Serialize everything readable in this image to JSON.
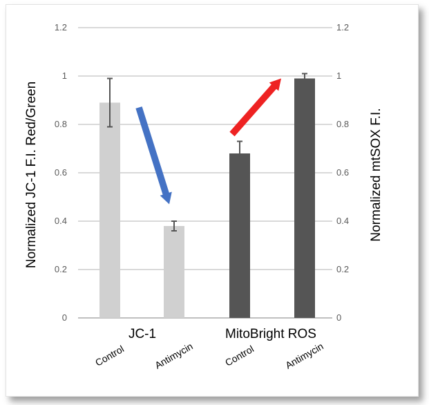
{
  "chart_data": {
    "type": "bar",
    "ylabel": "Normalized JC-1 F.I. Red/Green",
    "y2label": "Normalized mtSOX F.I.",
    "ylim": [
      0,
      1.2
    ],
    "y_ticks": [
      "0",
      "0.2",
      "0.4",
      "0.6",
      "0.8",
      "1",
      "1.2"
    ],
    "grid": true,
    "groups": [
      {
        "label": "JC-1",
        "categories": [
          "Control",
          "Antimycin"
        ]
      },
      {
        "label": "MitoBright ROS",
        "categories": [
          "Control",
          "Antimycin"
        ]
      }
    ],
    "bars": [
      {
        "group": 0,
        "category": "Control",
        "value": 0.89,
        "error": 0.1,
        "color": "#d0d0d0"
      },
      {
        "group": 0,
        "category": "Antimycin",
        "value": 0.38,
        "error": 0.02,
        "color": "#d0d0d0"
      },
      {
        "group": 1,
        "category": "Control",
        "value": 0.68,
        "error": 0.05,
        "color": "#555555"
      },
      {
        "group": 1,
        "category": "Antimycin",
        "value": 0.99,
        "error": 0.02,
        "color": "#555555"
      }
    ],
    "annotations": [
      {
        "type": "arrow",
        "direction": "down",
        "color": "#4472c4",
        "from_value": 0.87,
        "to_value": 0.47,
        "between": [
          0,
          1
        ]
      },
      {
        "type": "arrow",
        "direction": "up",
        "color": "#ee2222",
        "from_value": 0.76,
        "to_value": 0.99,
        "between": [
          2,
          3
        ]
      }
    ]
  }
}
